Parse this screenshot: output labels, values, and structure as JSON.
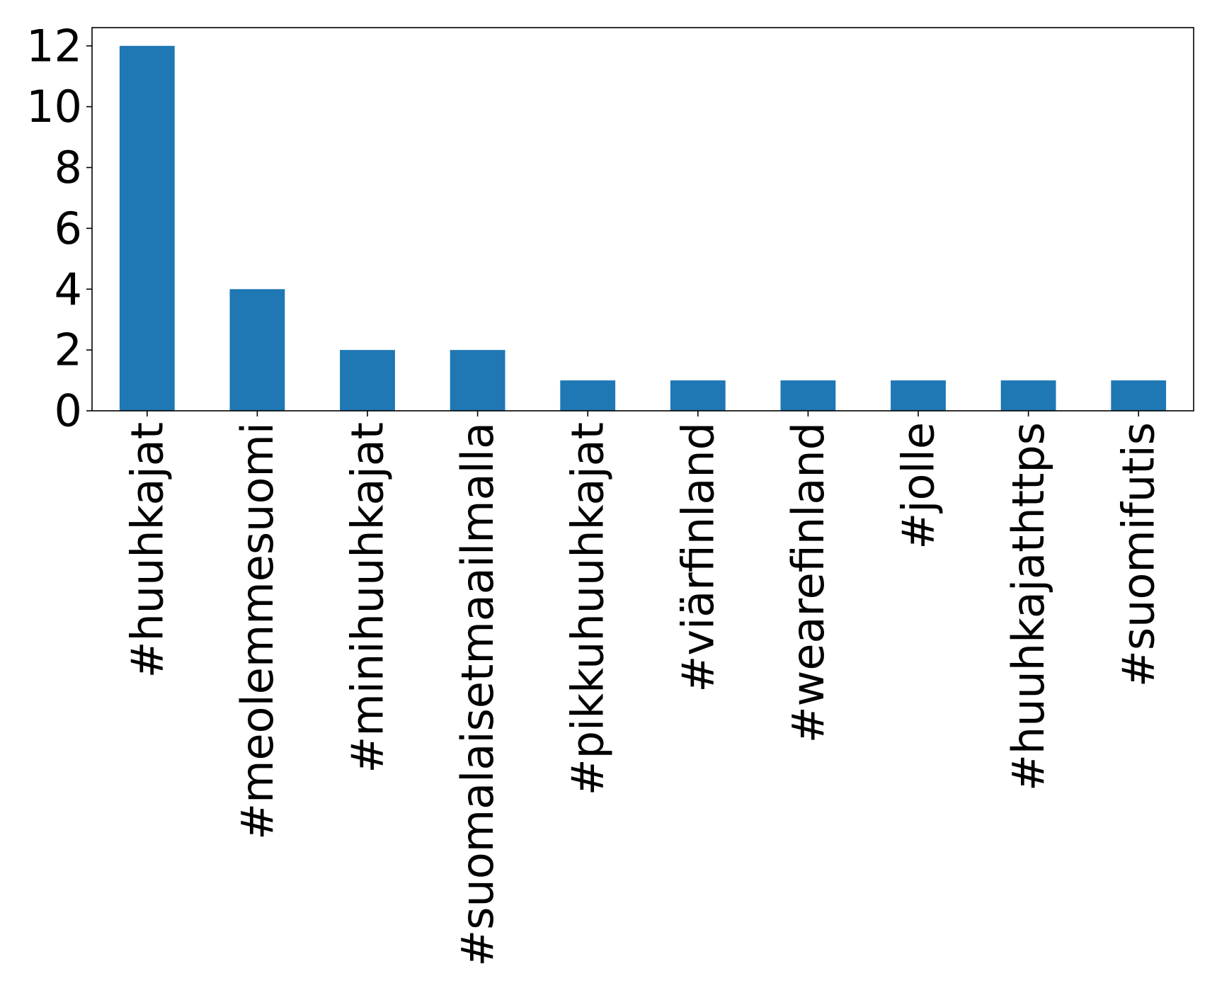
{
  "chart_data": {
    "type": "bar",
    "categories": [
      "#huuhkajat",
      "#meolemmesuomi",
      "#minihuuhkajat",
      "#suomalaisetmaailmalla",
      "#pikkuhuuhkajat",
      "#viärfinland",
      "#wearefinland",
      "#jolle",
      "#huuhkajathttps",
      "#suomifutis"
    ],
    "values": [
      12,
      4,
      2,
      2,
      1,
      1,
      1,
      1,
      1,
      1
    ],
    "title": "",
    "xlabel": "",
    "ylabel": "",
    "ylim": [
      0,
      12.6
    ],
    "yticks": [
      0,
      2,
      4,
      6,
      8,
      10,
      12
    ],
    "grid": false,
    "legend": "none",
    "colors": {
      "bar": "#1f77b4",
      "axis": "#000000",
      "background": "#ffffff"
    }
  }
}
